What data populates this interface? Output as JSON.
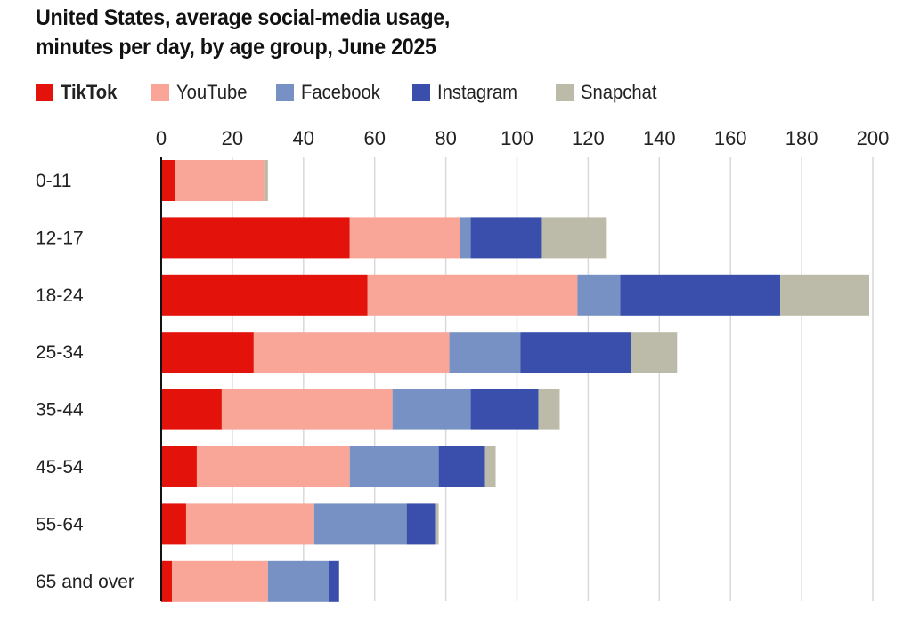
{
  "chart_data": {
    "type": "bar",
    "orientation": "horizontal",
    "stacked": true,
    "title": "United States, average social-media usage, minutes per day, by age group, June 2025",
    "title_lines": [
      "United States, average social-media usage,",
      "minutes per day, by age group, June 2025"
    ],
    "xlabel": "",
    "ylabel": "",
    "xlim": [
      0,
      200
    ],
    "xticks": [
      0,
      20,
      40,
      60,
      80,
      100,
      120,
      140,
      160,
      180,
      200
    ],
    "grid": true,
    "legend_position": "top-left",
    "categories": [
      "0-11",
      "12-17",
      "18-24",
      "25-34",
      "35-44",
      "45-54",
      "55-64",
      "65 and over"
    ],
    "series": [
      {
        "name": "TikTok",
        "color": "#e3120b",
        "bold": true,
        "values": [
          4,
          53,
          58,
          26,
          17,
          10,
          7,
          3
        ]
      },
      {
        "name": "YouTube",
        "color": "#f9a597",
        "bold": false,
        "values": [
          25,
          31,
          59,
          55,
          48,
          43,
          36,
          27
        ]
      },
      {
        "name": "Facebook",
        "color": "#7891c4",
        "bold": false,
        "values": [
          0,
          3,
          12,
          20,
          22,
          25,
          26,
          17
        ]
      },
      {
        "name": "Instagram",
        "color": "#3a4fab",
        "bold": false,
        "values": [
          0,
          20,
          45,
          31,
          19,
          13,
          8,
          3
        ]
      },
      {
        "name": "Snapchat",
        "color": "#bcbaa8",
        "bold": false,
        "values": [
          1,
          18,
          25,
          13,
          6,
          3,
          1,
          0
        ]
      }
    ]
  }
}
